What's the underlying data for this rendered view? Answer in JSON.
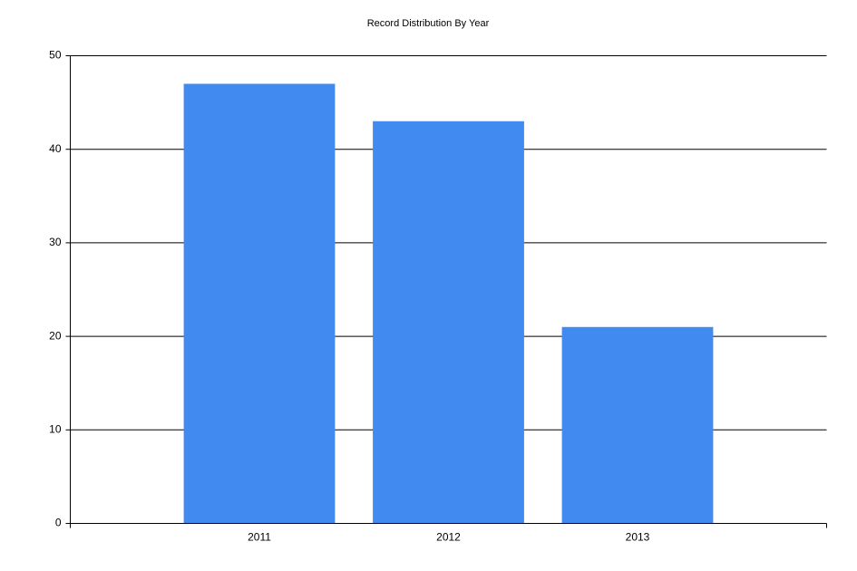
{
  "chart_data": {
    "type": "bar",
    "title": "Record Distribution By Year",
    "categories": [
      "2011",
      "2012",
      "2013"
    ],
    "values": [
      47,
      43,
      21
    ],
    "color": "#418af0",
    "ylim": [
      0,
      50
    ],
    "yticks": [
      0,
      10,
      20,
      30,
      40,
      50
    ],
    "grid": true
  }
}
